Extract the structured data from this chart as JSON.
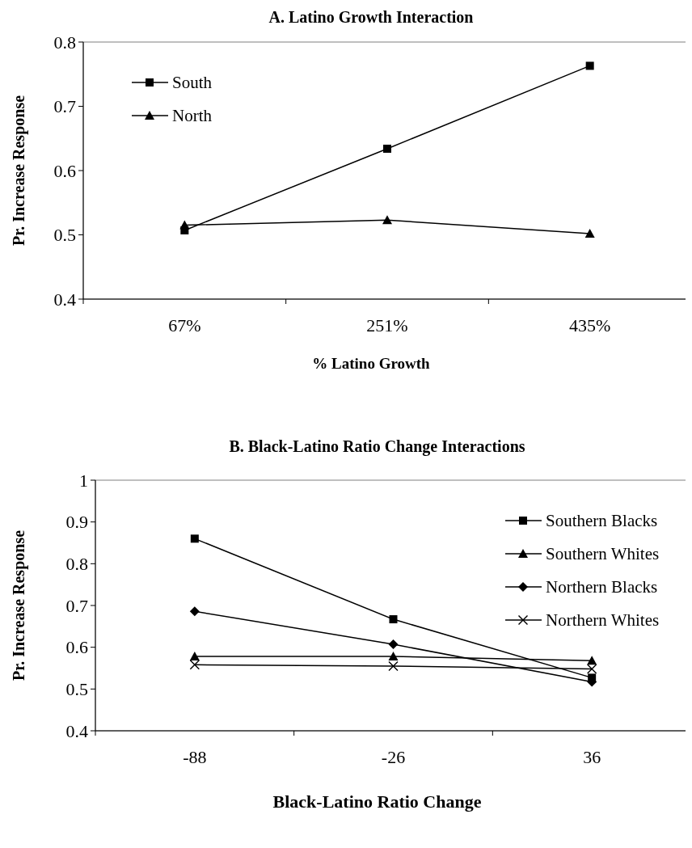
{
  "chart_data": [
    {
      "type": "line",
      "title": "A. Latino Growth Interaction",
      "xlabel": "% Latino Growth",
      "ylabel": "Pr. Increase Response",
      "categories": [
        "67%",
        "251%",
        "435%"
      ],
      "ylim": [
        0.4,
        0.8
      ],
      "yticks": [
        0.4,
        0.5,
        0.6,
        0.7,
        0.8
      ],
      "grid": false,
      "legend": "top left",
      "series": [
        {
          "name": "South",
          "color": "#000000",
          "marker": "square",
          "values": [
            0.507,
            0.634,
            0.763
          ]
        },
        {
          "name": "North",
          "color": "#000000",
          "marker": "triangle",
          "values": [
            0.515,
            0.523,
            0.502
          ]
        }
      ]
    },
    {
      "type": "line",
      "title": "B. Black-Latino Ratio Change Interactions",
      "xlabel": "Black-Latino Ratio Change",
      "ylabel": "Pr. Increase Response",
      "categories": [
        "-88",
        "-26",
        "36"
      ],
      "ylim": [
        0.4,
        1
      ],
      "yticks": [
        0.4,
        0.5,
        0.6,
        0.7,
        0.8,
        0.9,
        1
      ],
      "grid": false,
      "legend": "top right",
      "series": [
        {
          "name": "Southern Blacks",
          "color": "#000000",
          "marker": "square",
          "values": [
            0.86,
            0.667,
            0.527
          ]
        },
        {
          "name": "Southern Whites",
          "color": "#000000",
          "marker": "triangle",
          "values": [
            0.578,
            0.578,
            0.568
          ]
        },
        {
          "name": "Northern Blacks",
          "color": "#000000",
          "marker": "diamond",
          "values": [
            0.686,
            0.607,
            0.517
          ]
        },
        {
          "name": "Northern Whites",
          "color": "#000000",
          "marker": "cross",
          "values": [
            0.558,
            0.555,
            0.548
          ]
        }
      ]
    }
  ]
}
